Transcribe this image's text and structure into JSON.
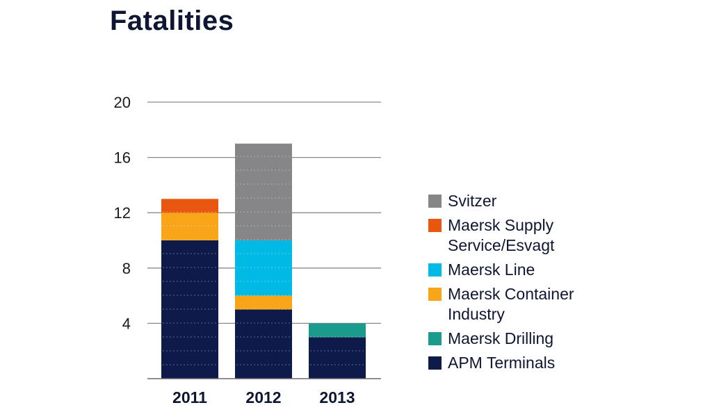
{
  "chart_data": {
    "type": "bar",
    "stacked": true,
    "title": "Fatalities",
    "xlabel": "",
    "ylabel": "",
    "categories": [
      "2011",
      "2012",
      "2013"
    ],
    "ylim": [
      0,
      20
    ],
    "yticks": [
      4,
      8,
      12,
      16,
      20
    ],
    "grid": true,
    "legend_position": "right",
    "series": [
      {
        "name": "APM Terminals",
        "color": "#0d1a4a",
        "values": [
          10,
          5,
          3
        ]
      },
      {
        "name": "Maersk Drilling",
        "color": "#1a9b8c",
        "values": [
          0,
          0,
          1
        ]
      },
      {
        "name": "Maersk Container Industry",
        "color": "#f9a51a",
        "values": [
          2,
          1,
          0
        ]
      },
      {
        "name": "Maersk Line",
        "color": "#00b9e4",
        "values": [
          0,
          4,
          0
        ]
      },
      {
        "name": "Maersk Supply Service/Esvagt",
        "color": "#e9560f",
        "values": [
          1,
          0,
          0
        ]
      },
      {
        "name": "Svitzer",
        "color": "#868689",
        "values": [
          0,
          7,
          0
        ]
      }
    ],
    "legend": [
      {
        "name": "Svitzer",
        "color": "#868689"
      },
      {
        "name": "Maersk Supply Service/Esvagt",
        "color": "#e9560f"
      },
      {
        "name": "Maersk Line",
        "color": "#00b9e4"
      },
      {
        "name": "Maersk Container Industry",
        "color": "#f9a51a"
      },
      {
        "name": "Maersk Drilling",
        "color": "#1a9b8c"
      },
      {
        "name": "APM Terminals",
        "color": "#0d1a4a"
      }
    ]
  }
}
